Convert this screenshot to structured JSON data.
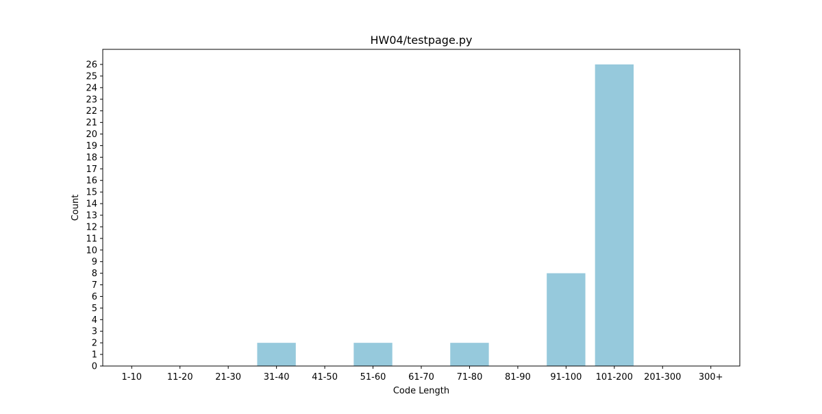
{
  "chart_data": {
    "type": "bar",
    "title": "HW04/testpage.py",
    "xlabel": "Code Length",
    "ylabel": "Count",
    "categories": [
      "1-10",
      "11-20",
      "21-30",
      "31-40",
      "41-50",
      "51-60",
      "61-70",
      "71-80",
      "81-90",
      "91-100",
      "101-200",
      "201-300",
      "300+"
    ],
    "values": [
      0,
      0,
      0,
      2,
      0,
      2,
      0,
      2,
      0,
      8,
      26,
      0,
      0
    ],
    "ylim": [
      0,
      27.3
    ],
    "yticks": [
      0,
      1,
      2,
      3,
      4,
      5,
      6,
      7,
      8,
      9,
      10,
      11,
      12,
      13,
      14,
      15,
      16,
      17,
      18,
      19,
      20,
      21,
      22,
      23,
      24,
      25,
      26
    ],
    "grid": false,
    "legend": "none",
    "bar_color": "#96c9dc"
  }
}
